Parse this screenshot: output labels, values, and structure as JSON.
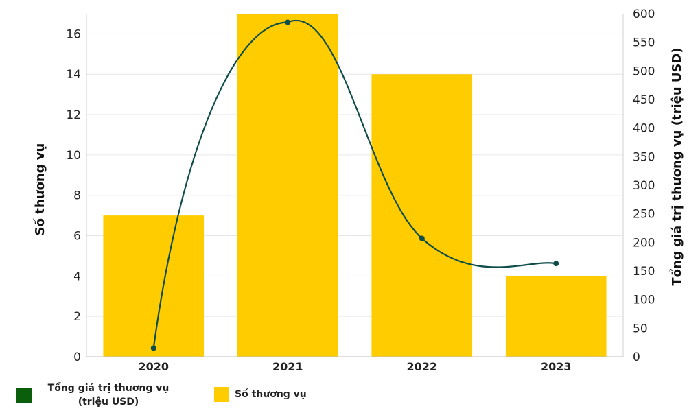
{
  "chart_data": {
    "type": "bar+line",
    "categories": [
      "2020",
      "2021",
      "2022",
      "2023"
    ],
    "series": [
      {
        "name": "Số thương vụ",
        "type": "bar",
        "axis": "left",
        "color": "#FFCC00",
        "values": [
          7,
          17,
          14,
          4
        ]
      },
      {
        "name": "Tổng giá trị thương vụ (triệu USD)",
        "type": "line",
        "axis": "right",
        "color": "#0F4D4A",
        "legend_color": "#0B5E0B",
        "values": [
          15,
          585,
          207,
          163
        ]
      }
    ],
    "ylabel_left": "Số thương vụ",
    "ylabel_right": "Tổng giá trị thương vụ (triệu USD)",
    "ylim_left": [
      0,
      17
    ],
    "ylim_right": [
      0,
      600
    ],
    "yticks_left": [
      0,
      2,
      4,
      6,
      8,
      10,
      12,
      14,
      16
    ],
    "yticks_right": [
      0,
      50,
      100,
      150,
      200,
      250,
      300,
      350,
      400,
      450,
      500,
      550,
      600
    ],
    "grid": true,
    "legend_position": "bottom-left"
  },
  "legend": {
    "line_label_1": "Tổng giá trị thương vụ",
    "line_label_2": "(triệu USD)",
    "bar_label": "Số thương vụ"
  }
}
